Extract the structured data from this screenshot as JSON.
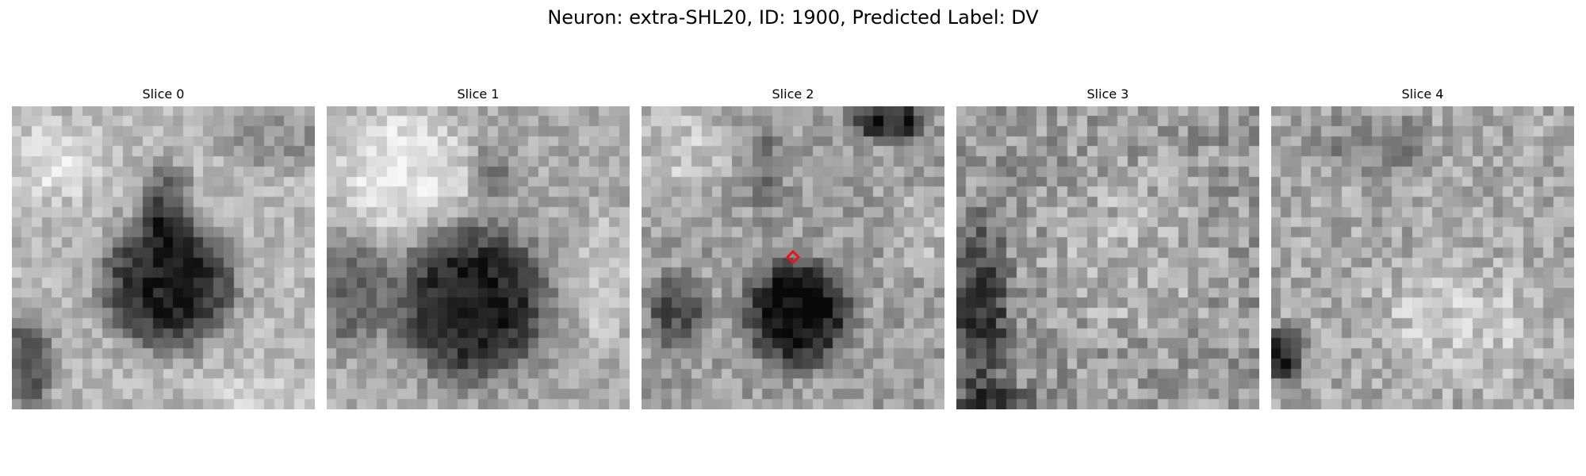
{
  "figure": {
    "title": "Neuron: extra-SHL20, ID: 1900, Predicted Label: DV"
  },
  "marker": {
    "color": "#e8131b",
    "shape": "diamond",
    "slice_index": 2
  },
  "slices": [
    {
      "title": "Slice 0"
    },
    {
      "title": "Slice 1"
    },
    {
      "title": "Slice 2"
    },
    {
      "title": "Slice 3"
    },
    {
      "title": "Slice 4"
    }
  ]
}
